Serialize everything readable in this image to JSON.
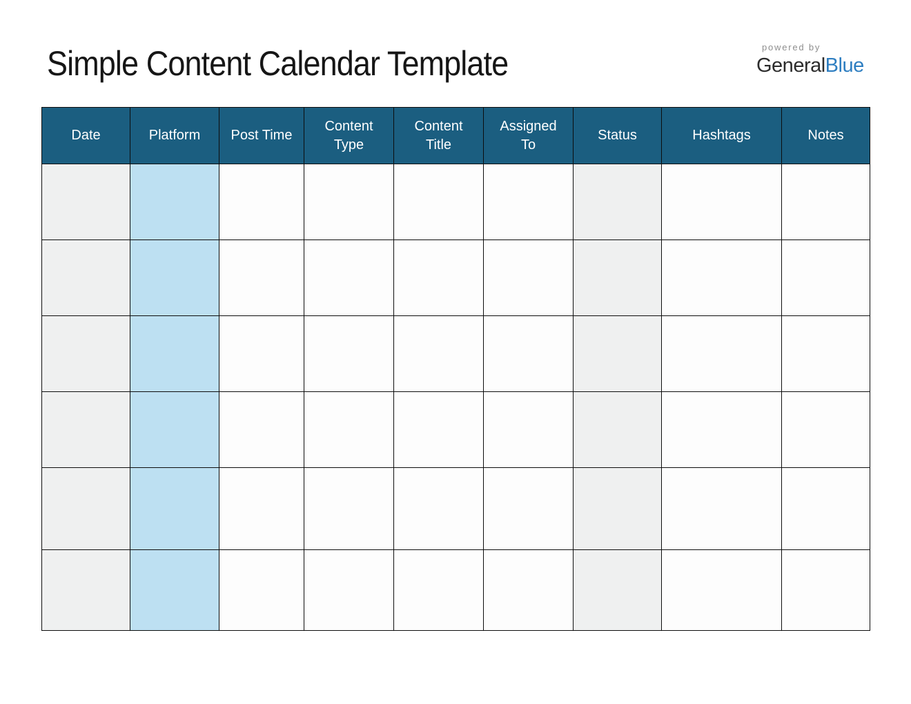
{
  "page": {
    "title": "Simple Content Calendar Template",
    "branding": {
      "powered_by": "powered by",
      "brand_first": "General",
      "brand_second": "Blue"
    }
  },
  "table": {
    "columns": [
      {
        "label": "Date"
      },
      {
        "label": "Platform"
      },
      {
        "label": "Post Time"
      },
      {
        "label": "Content",
        "label2": "Type"
      },
      {
        "label": "Content",
        "label2": "Title"
      },
      {
        "label": "Assigned",
        "label2": "To"
      },
      {
        "label": "Status"
      },
      {
        "label": "Hashtags"
      },
      {
        "label": "Notes"
      }
    ],
    "rows": [
      [
        "",
        "",
        "",
        "",
        "",
        "",
        "",
        "",
        ""
      ],
      [
        "",
        "",
        "",
        "",
        "",
        "",
        "",
        "",
        ""
      ],
      [
        "",
        "",
        "",
        "",
        "",
        "",
        "",
        "",
        ""
      ],
      [
        "",
        "",
        "",
        "",
        "",
        "",
        "",
        "",
        ""
      ],
      [
        "",
        "",
        "",
        "",
        "",
        "",
        "",
        "",
        ""
      ],
      [
        "",
        "",
        "",
        "",
        "",
        "",
        "",
        "",
        ""
      ]
    ]
  },
  "colors": {
    "header_bg": "#1b5e80",
    "header_text": "#ffffff",
    "date_column_bg": "#eff0f0",
    "platform_column_bg": "#bde0f2",
    "status_column_bg": "#eff0f0",
    "grid_border": "#0d0d0d",
    "brand_blue": "#2e7ec1",
    "brand_dark": "#2c2c2c",
    "powered_by_gray": "#8e8e8e",
    "title_color": "#161616"
  }
}
